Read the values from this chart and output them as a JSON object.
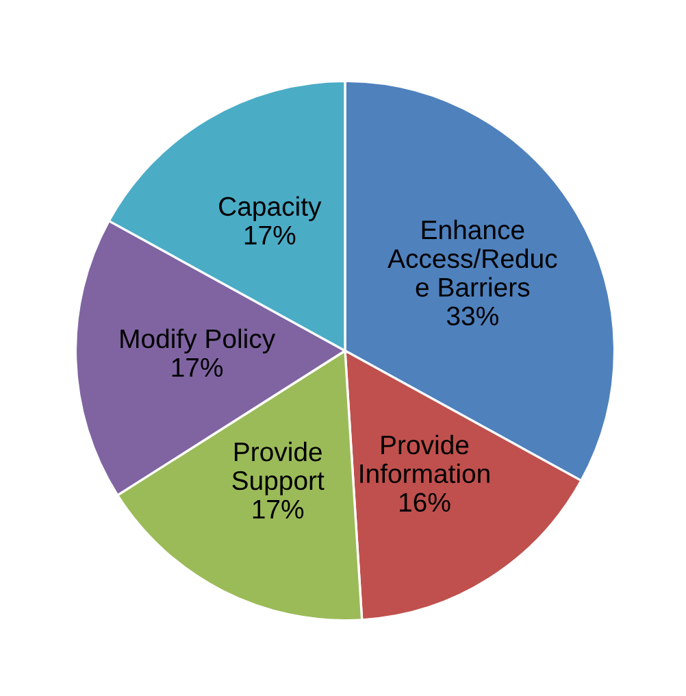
{
  "chart_data": {
    "type": "pie",
    "categories": [
      "Enhance\nAccess/Reduc\ne Barriers",
      "Provide\nInformation",
      "Provide\nSupport",
      "Modify Policy",
      "Capacity"
    ],
    "values": [
      33,
      16,
      17,
      17,
      17
    ],
    "value_labels": [
      "33%",
      "16%",
      "17%",
      "17%",
      "17%"
    ],
    "colors": [
      "#4f81bd",
      "#c0504d",
      "#9bbb59",
      "#8064a2",
      "#4bacc6"
    ],
    "legend": false
  }
}
